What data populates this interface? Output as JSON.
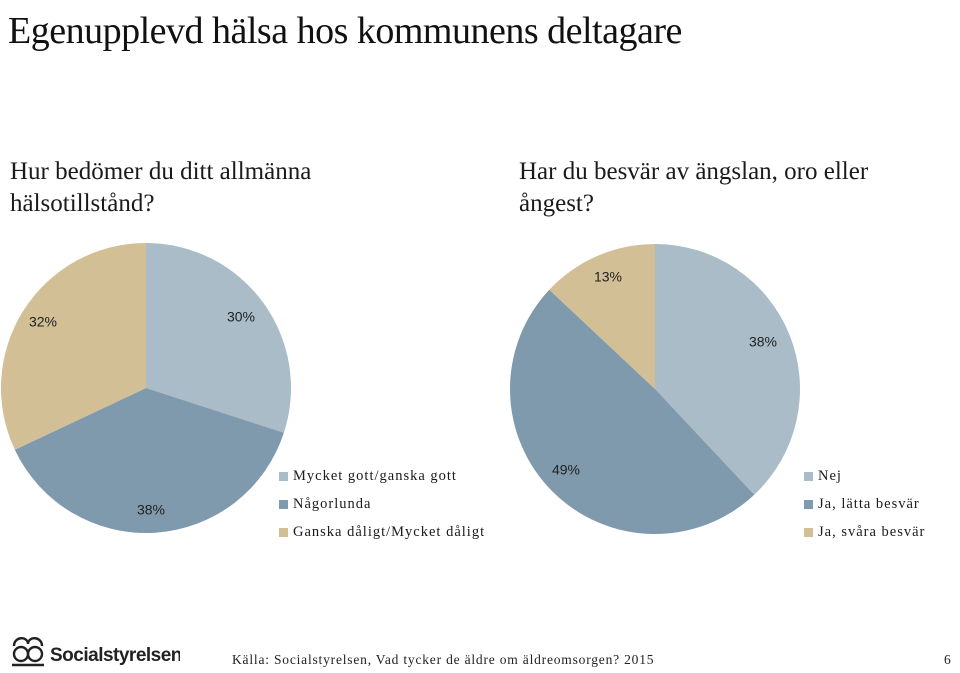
{
  "title": "Egenupplevd hälsa hos kommunens deltagare",
  "colors": {
    "light": "#A9BCC7",
    "mid": "#7F9AAC",
    "tan": "#D2BF96"
  },
  "chart_data": [
    {
      "type": "pie",
      "title": "Hur bedömer du ditt allmänna hälsotillstånd?",
      "categories": [
        "Mycket gott/ganska gott",
        "Någorlunda",
        "Ganska dåligt/Mycket dåligt"
      ],
      "values": [
        30,
        38,
        32
      ],
      "labels": [
        "30%",
        "38%",
        "32%"
      ],
      "colors": [
        "#A9BCC7",
        "#7F9AAC",
        "#D2BF96"
      ],
      "legend_position": "right"
    },
    {
      "type": "pie",
      "title": "Har du besvär av ängslan, oro eller ångest?",
      "categories": [
        "Nej",
        "Ja, lätta besvär",
        "Ja, svåra besvär"
      ],
      "values": [
        38,
        49,
        13
      ],
      "labels": [
        "38%",
        "49%",
        "13%"
      ],
      "colors": [
        "#A9BCC7",
        "#7F9AAC",
        "#D2BF96"
      ],
      "legend_position": "right"
    }
  ],
  "logo_text": "Socialstyrelsen",
  "source": "Källa: Socialstyrelsen, Vad tycker de äldre om äldreomsorgen? 2015",
  "page_number": "6"
}
